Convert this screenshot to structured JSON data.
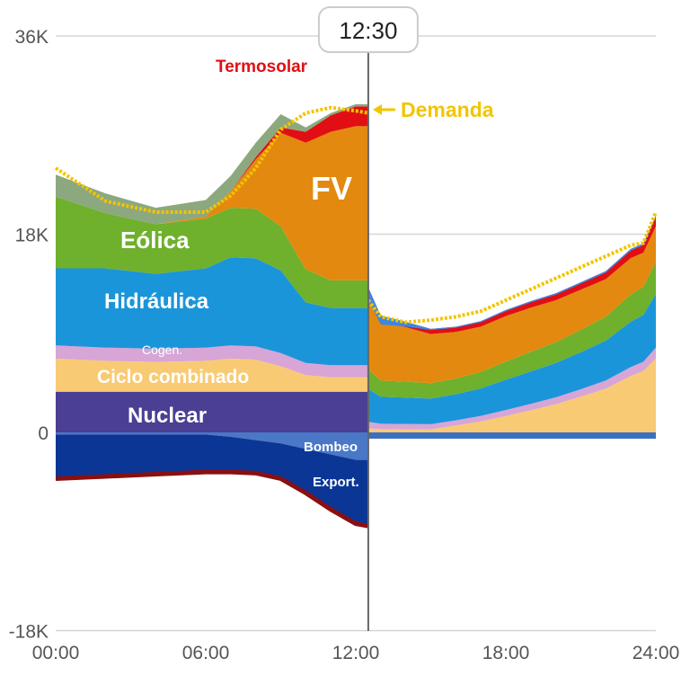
{
  "chart_data": {
    "type": "area",
    "title": "",
    "xlabel": "",
    "ylabel": "",
    "x_ticks": [
      "00:00",
      "06:00",
      "12:00",
      "18:00",
      "24:00"
    ],
    "y_ticks": [
      {
        "value": 36000,
        "label": "36K"
      },
      {
        "value": 18000,
        "label": "18K"
      },
      {
        "value": 0,
        "label": "0"
      },
      {
        "value": -18000,
        "label": "-18K"
      }
    ],
    "ylim": [
      -18000,
      36000
    ],
    "xlim": [
      0,
      24
    ],
    "cursor": {
      "time": 12.5,
      "label": "12:30"
    },
    "hours": [
      0,
      2,
      4,
      6,
      7,
      8,
      9,
      10,
      11,
      12,
      12.5
    ],
    "series": [
      {
        "name": "Nuclear",
        "color": "#4a3f93",
        "values": [
          3700,
          3700,
          3700,
          3700,
          3700,
          3700,
          3700,
          3700,
          3700,
          3700,
          3700
        ]
      },
      {
        "name": "Ciclo combinado",
        "color": "#f9ca74",
        "values": [
          3000,
          2800,
          2700,
          2800,
          3000,
          2900,
          2300,
          1500,
          1300,
          1300,
          1300
        ]
      },
      {
        "name": "Cogen.",
        "color": "#d7a5d6",
        "values": [
          1200,
          1200,
          1200,
          1200,
          1200,
          1200,
          1200,
          1100,
          1100,
          1100,
          1100
        ]
      },
      {
        "name": "Hidráulica",
        "color": "#1b95d9",
        "values": [
          7000,
          7200,
          6800,
          7200,
          8000,
          8000,
          7500,
          5500,
          5200,
          5200,
          5200
        ]
      },
      {
        "name": "Eólica",
        "color": "#6fb02c",
        "values": [
          6500,
          5000,
          4500,
          4500,
          4500,
          4500,
          4000,
          3000,
          2500,
          2500,
          2500
        ]
      },
      {
        "name": "FV",
        "color": "#e3890f",
        "values": [
          0,
          0,
          0,
          200,
          1500,
          4500,
          8500,
          11500,
          13500,
          14000,
          14000
        ]
      },
      {
        "name": "Termosolar",
        "color": "#e10f13",
        "values": [
          0,
          0,
          0,
          0,
          0,
          200,
          500,
          1000,
          1500,
          1800,
          1800
        ]
      }
    ],
    "other_generation": {
      "name": "",
      "color": "#8ca87f",
      "values": [
        2000,
        1800,
        1500,
        1500,
        1400,
        1300,
        1200,
        400,
        200,
        200,
        200
      ]
    },
    "demand": {
      "name": "Demanda",
      "color": "#f2c500",
      "values": [
        24000,
        21000,
        20000,
        20000,
        21500,
        24000,
        27500,
        29000,
        29500,
        29200,
        29000
      ]
    },
    "negative_series": [
      {
        "name": "Bombeo",
        "color": "#4a77c6",
        "values": [
          -200,
          -200,
          -200,
          -200,
          -400,
          -700,
          -1000,
          -1500,
          -2000,
          -2500,
          -2500
        ]
      },
      {
        "name": "Export.",
        "color": "#0b3696",
        "values": [
          -4000,
          -3800,
          -3600,
          -3400,
          -3200,
          -3000,
          -3200,
          -4000,
          -5000,
          -5800,
          -6000
        ]
      }
    ],
    "after_cursor": {
      "hours": [
        12.5,
        13,
        14,
        15,
        16,
        17,
        18,
        19,
        20,
        21,
        22,
        23,
        23.5,
        24
      ],
      "total": [
        12000,
        9800,
        9600,
        9300,
        9500,
        10000,
        11000,
        11800,
        12500,
        13500,
        14500,
        16500,
        17000,
        19500
      ],
      "demand": [
        12000,
        10500,
        10000,
        10200,
        10500,
        11000,
        12000,
        13000,
        14000,
        15000,
        16000,
        17000,
        17200,
        20000
      ],
      "color": "#e3890f"
    },
    "labels": {
      "termosolar": "Termosolar",
      "demanda": "Demanda",
      "fv": "FV",
      "eolica": "Eólica",
      "hidraulica": "Hidráulica",
      "cogen": "Cogen.",
      "ciclo": "Ciclo combinado",
      "nuclear": "Nuclear",
      "bombeo": "Bombeo",
      "export": "Export."
    }
  }
}
